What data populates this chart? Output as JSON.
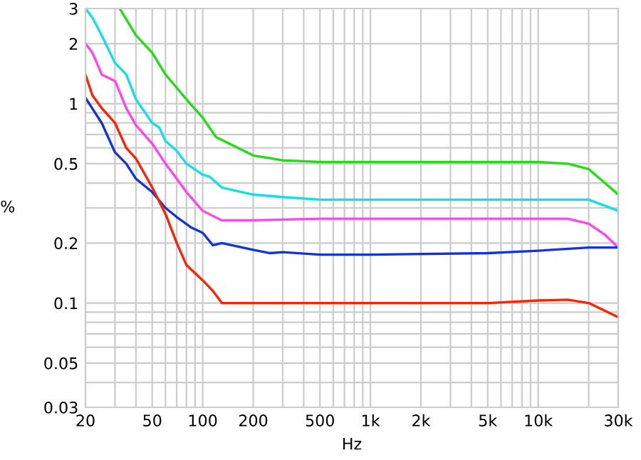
{
  "chart_data": {
    "type": "line",
    "xlabel": "Hz",
    "ylabel": "%",
    "log": "xy",
    "grid": true,
    "xlim": [
      20,
      30000
    ],
    "ylim": [
      0.03,
      3
    ],
    "xticks": [
      20,
      {
        "value": 30,
        "label": null
      },
      {
        "value": 40,
        "label": null
      },
      50,
      {
        "value": 60,
        "label": null
      },
      {
        "value": 70,
        "label": null
      },
      {
        "value": 80,
        "label": null
      },
      {
        "value": 90,
        "label": null
      },
      100,
      200,
      {
        "value": 300,
        "label": null
      },
      {
        "value": 400,
        "label": null
      },
      500,
      {
        "value": 600,
        "label": null
      },
      {
        "value": 700,
        "label": null
      },
      {
        "value": 800,
        "label": null
      },
      {
        "value": 900,
        "label": null
      },
      {
        "value": 1000,
        "label": "1k"
      },
      {
        "value": 2000,
        "label": "2k"
      },
      {
        "value": 3000,
        "label": null
      },
      {
        "value": 4000,
        "label": null
      },
      {
        "value": 5000,
        "label": "5k"
      },
      {
        "value": 6000,
        "label": null
      },
      {
        "value": 7000,
        "label": null
      },
      {
        "value": 8000,
        "label": null
      },
      {
        "value": 9000,
        "label": null
      },
      {
        "value": 10000,
        "label": "10k"
      },
      {
        "value": 20000,
        "label": null
      },
      {
        "value": 30000,
        "label": "30k"
      }
    ],
    "yticks": [
      0.03,
      {
        "value": 0.04,
        "label": null
      },
      0.05,
      {
        "value": 0.06,
        "label": null
      },
      {
        "value": 0.07,
        "label": null
      },
      {
        "value": 0.08,
        "label": null
      },
      {
        "value": 0.09,
        "label": null
      },
      0.1,
      0.2,
      {
        "value": 0.3,
        "label": null
      },
      {
        "value": 0.4,
        "label": null
      },
      0.5,
      {
        "value": 0.6,
        "label": null
      },
      {
        "value": 0.7,
        "label": null
      },
      {
        "value": 0.8,
        "label": null
      },
      {
        "value": 0.9,
        "label": null
      },
      1,
      2,
      3
    ],
    "series": [
      {
        "color": "#22dd11",
        "x": [
          32,
          40,
          50,
          60,
          80,
          100,
          120,
          150,
          200,
          300,
          500,
          1000,
          2000,
          5000,
          10000,
          15000,
          20000,
          25000,
          30000
        ],
        "values": [
          3,
          2.2,
          1.8,
          1.4,
          1.05,
          0.85,
          0.68,
          0.62,
          0.55,
          0.52,
          0.51,
          0.51,
          0.51,
          0.51,
          0.51,
          0.5,
          0.47,
          0.4,
          0.35
        ]
      },
      {
        "color": "#11e0e8",
        "x": [
          20,
          22,
          25,
          30,
          35,
          40,
          50,
          55,
          60,
          70,
          80,
          100,
          110,
          130,
          200,
          300,
          500,
          1000,
          5000,
          10000,
          20000,
          30000
        ],
        "values": [
          3,
          2.7,
          2.2,
          1.6,
          1.4,
          1.05,
          0.8,
          0.76,
          0.65,
          0.58,
          0.5,
          0.44,
          0.43,
          0.38,
          0.35,
          0.34,
          0.33,
          0.33,
          0.33,
          0.33,
          0.33,
          0.29
        ]
      },
      {
        "color": "#ff44ee",
        "x": [
          20,
          22,
          25,
          30,
          35,
          40,
          50,
          60,
          70,
          80,
          100,
          130,
          200,
          500,
          1000,
          5000,
          15000,
          20000,
          25000,
          30000
        ],
        "values": [
          2,
          1.8,
          1.4,
          1.3,
          0.95,
          0.78,
          0.63,
          0.5,
          0.42,
          0.36,
          0.29,
          0.26,
          0.26,
          0.265,
          0.265,
          0.265,
          0.265,
          0.25,
          0.22,
          0.19
        ]
      },
      {
        "color": "#1133dd",
        "x": [
          20,
          25,
          30,
          35,
          40,
          50,
          60,
          70,
          85,
          100,
          115,
          130,
          200,
          250,
          300,
          500,
          1000,
          5000,
          10000,
          20000,
          30000
        ],
        "values": [
          1.07,
          0.8,
          0.57,
          0.5,
          0.42,
          0.36,
          0.3,
          0.27,
          0.24,
          0.225,
          0.195,
          0.2,
          0.185,
          0.178,
          0.18,
          0.175,
          0.175,
          0.178,
          0.183,
          0.19,
          0.19
        ]
      },
      {
        "color": "#ff2200",
        "x": [
          20,
          22,
          25,
          30,
          35,
          40,
          50,
          60,
          70,
          80,
          100,
          115,
          130,
          200,
          500,
          5000,
          10000,
          15000,
          20000,
          30000
        ],
        "values": [
          1.4,
          1.1,
          0.95,
          0.8,
          0.6,
          0.53,
          0.38,
          0.28,
          0.2,
          0.155,
          0.13,
          0.115,
          0.1,
          0.1,
          0.1,
          0.1,
          0.103,
          0.104,
          0.1,
          0.085
        ]
      }
    ]
  }
}
